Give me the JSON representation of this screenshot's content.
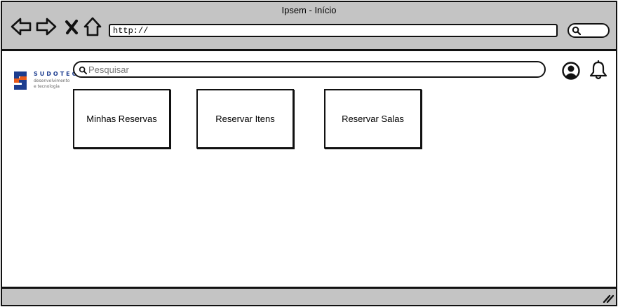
{
  "window": {
    "title": "Ipsem - Início"
  },
  "toolbar": {
    "back_icon": "arrow-left-icon",
    "forward_icon": "arrow-right-icon",
    "stop_icon": "close-x-icon",
    "home_icon": "home-icon",
    "url": "http://",
    "search_icon": "magnifier-icon"
  },
  "logo": {
    "name": "SUDOTEC",
    "tagline": "desenvolvimento e tecnologia",
    "colors": {
      "blue": "#1d3d8f",
      "orange": "#e85a1b"
    }
  },
  "search": {
    "placeholder": "Pesquisar",
    "value": ""
  },
  "header_icons": {
    "user": "user-avatar-icon",
    "notifications": "bell-icon"
  },
  "cards": [
    {
      "label": "Minhas Reservas"
    },
    {
      "label": "Reservar Itens"
    },
    {
      "label": "Reservar Salas"
    }
  ],
  "theme": {
    "chrome_gray": "#c4c4c4",
    "stroke": "#111111",
    "background": "#ffffff"
  }
}
